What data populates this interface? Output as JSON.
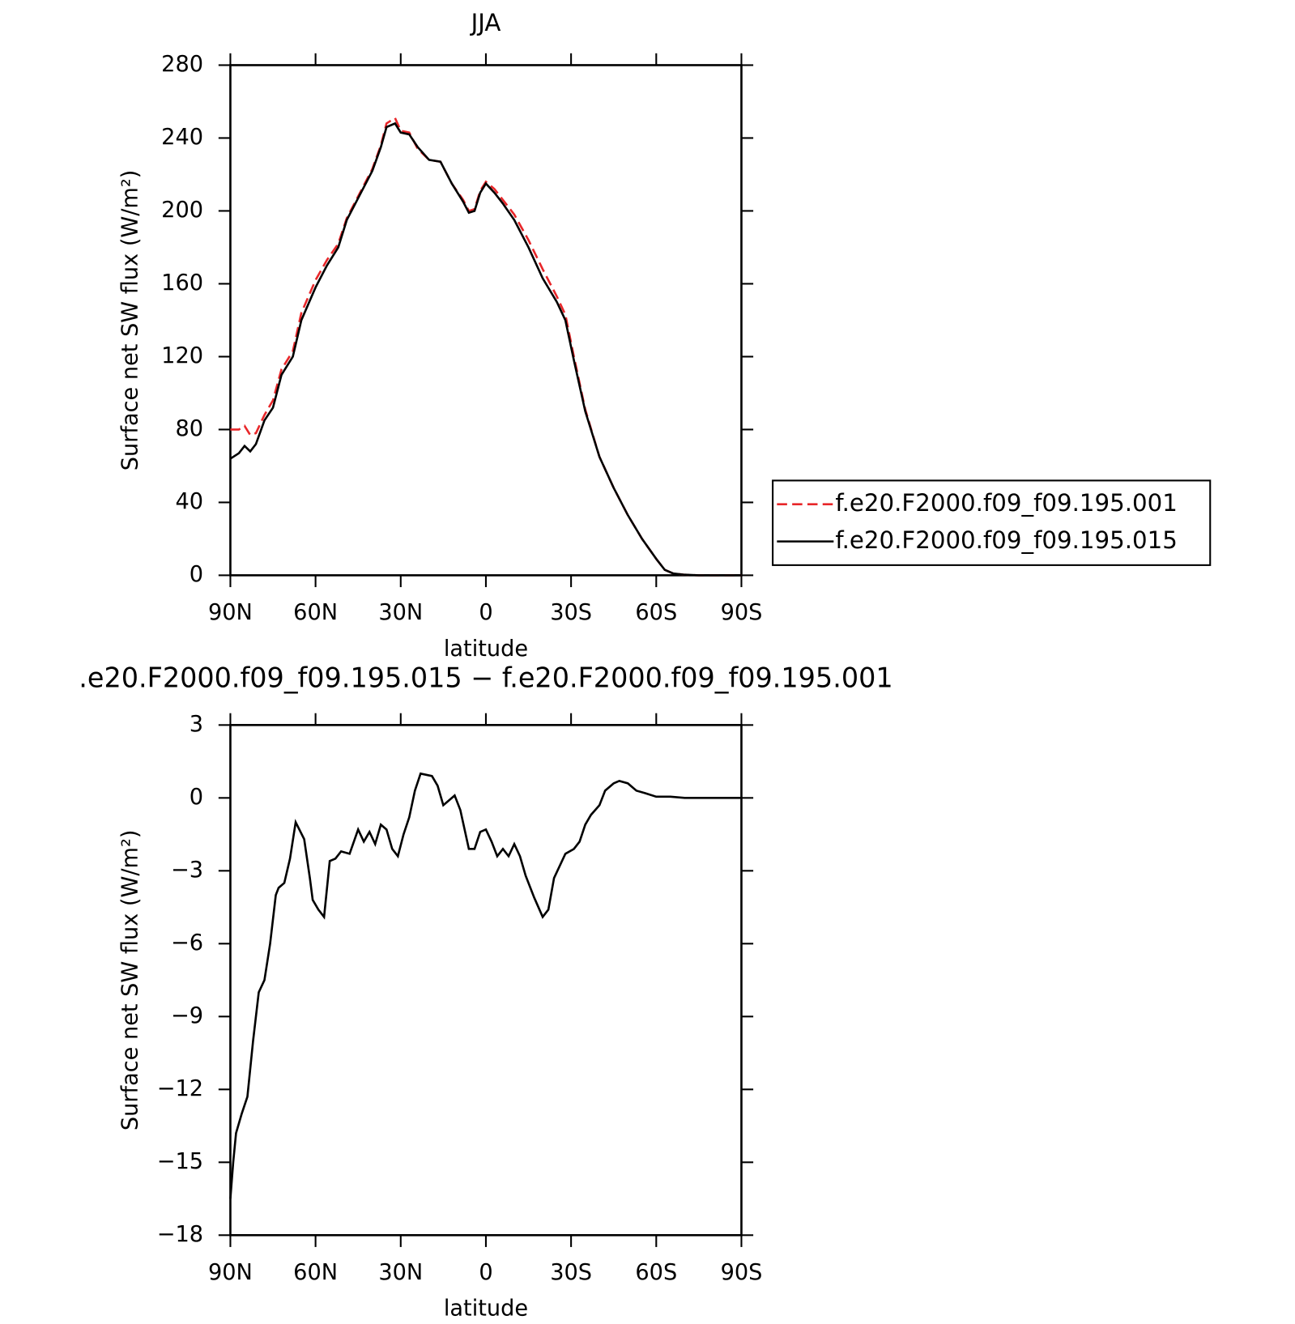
{
  "chart_data": [
    {
      "type": "line",
      "title": "JJA",
      "xlabel": "latitude",
      "ylabel": "Surface net SW flux (W/m²)",
      "x": [
        90,
        87,
        85,
        83,
        81,
        78,
        75,
        72,
        68,
        65,
        60,
        56,
        52,
        49,
        45,
        40,
        37,
        35,
        32,
        30,
        27,
        24,
        20,
        16,
        12,
        8,
        6,
        4,
        2,
        0,
        -3,
        -6,
        -10,
        -15,
        -20,
        -25,
        -28,
        -31,
        -35,
        -40,
        -45,
        -50,
        -55,
        -60,
        -63,
        -66,
        -70,
        -75,
        -80,
        -85,
        -90
      ],
      "series": [
        {
          "name": "f.e20.F2000.f09_f09.195.001",
          "color": "#e8272a",
          "dash": true,
          "values": [
            80,
            80,
            82,
            77,
            78,
            88,
            96,
            113,
            123,
            144,
            162,
            173,
            182,
            196,
            208,
            223,
            236,
            248,
            251,
            244,
            243,
            234,
            228,
            227,
            215,
            206,
            200,
            201,
            211,
            216,
            212,
            206,
            198,
            184,
            168,
            153,
            143,
            120,
            91,
            65,
            48,
            33,
            20,
            9,
            3,
            1,
            0.3,
            0,
            0,
            0,
            0
          ]
        },
        {
          "name": "f.e20.F2000.f09_f09.195.015",
          "color": "#000000",
          "dash": false,
          "values": [
            64,
            67,
            71,
            68,
            72,
            85,
            92,
            110,
            120,
            140,
            158,
            170,
            180,
            195,
            207,
            222,
            235,
            246,
            248,
            243,
            242,
            235,
            228,
            227,
            215,
            205,
            199,
            200,
            210,
            215,
            210,
            204,
            195,
            180,
            163,
            150,
            140,
            118,
            90,
            65,
            48,
            33,
            20,
            9,
            3,
            1,
            0.3,
            0,
            0,
            0,
            0
          ]
        }
      ],
      "xlim": [
        90,
        -90
      ],
      "xticks": [
        {
          "value": 90,
          "label": "90N"
        },
        {
          "value": 60,
          "label": "60N"
        },
        {
          "value": 30,
          "label": "30N"
        },
        0,
        {
          "value": -30,
          "label": "30S"
        },
        {
          "value": -60,
          "label": "60S"
        },
        {
          "value": -90,
          "label": "90S"
        }
      ],
      "ylim": [
        0,
        280
      ],
      "yticks": [
        0,
        40,
        80,
        120,
        160,
        200,
        240,
        280
      ],
      "legend": "right"
    },
    {
      "type": "line",
      "title": ".e20.F2000.f09_f09.195.015 − f.e20.F2000.f09_f09.195.001",
      "xlabel": "latitude",
      "ylabel": "Surface net SW flux (W/m²)",
      "x": [
        90,
        89,
        88,
        86,
        84,
        82,
        80,
        78,
        76,
        74,
        73,
        71,
        69,
        67,
        64,
        62,
        61,
        59,
        57,
        55,
        53,
        51,
        48,
        45,
        43,
        41,
        39,
        37,
        35,
        33,
        31,
        29,
        27,
        25,
        23,
        21,
        19,
        17,
        15,
        13,
        11,
        9,
        6,
        4,
        2,
        0,
        -2,
        -4,
        -6,
        -8,
        -10,
        -12,
        -14,
        -17,
        -20,
        -22,
        -24,
        -26,
        -28,
        -31,
        -33,
        -35,
        -37,
        -40,
        -42,
        -45,
        -47,
        -50,
        -53,
        -56,
        -60,
        -65,
        -70,
        -80,
        -90
      ],
      "series": [
        {
          "color": "#000000",
          "dash": false,
          "values": [
            -16.5,
            -15,
            -13.8,
            -13,
            -12.3,
            -10,
            -8,
            -7.5,
            -6,
            -4,
            -3.7,
            -3.5,
            -2.5,
            -1,
            -1.7,
            -3.3,
            -4.2,
            -4.6,
            -4.9,
            -2.6,
            -2.5,
            -2.2,
            -2.3,
            -1.3,
            -1.8,
            -1.4,
            -1.9,
            -1.1,
            -1.3,
            -2.1,
            -2.4,
            -1.5,
            -0.8,
            0.3,
            1,
            0.95,
            0.9,
            0.5,
            -0.3,
            -0.1,
            0.1,
            -0.5,
            -2.1,
            -2.1,
            -1.4,
            -1.3,
            -1.8,
            -2.4,
            -2.1,
            -2.4,
            -1.9,
            -2.4,
            -3.2,
            -4.1,
            -4.9,
            -4.6,
            -3.3,
            -2.8,
            -2.3,
            -2.1,
            -1.8,
            -1.1,
            -0.7,
            -0.3,
            0.3,
            0.6,
            0.7,
            0.6,
            0.3,
            0.2,
            0.05,
            0.05,
            0,
            0,
            0
          ]
        }
      ],
      "xlim": [
        90,
        -90
      ],
      "xticks": [
        {
          "value": 90,
          "label": "90N"
        },
        {
          "value": 60,
          "label": "60N"
        },
        {
          "value": 30,
          "label": "30N"
        },
        0,
        {
          "value": -30,
          "label": "30S"
        },
        {
          "value": -60,
          "label": "60S"
        },
        {
          "value": -90,
          "label": "90S"
        }
      ],
      "ylim": [
        -18,
        3
      ],
      "yticks": [
        3,
        0,
        {
          "value": -3,
          "label": "−3"
        },
        {
          "value": -6,
          "label": "−6"
        },
        {
          "value": -9,
          "label": "−9"
        },
        {
          "value": -12,
          "label": "−12"
        },
        {
          "value": -15,
          "label": "−15"
        },
        {
          "value": -18,
          "label": "−18"
        }
      ]
    }
  ]
}
